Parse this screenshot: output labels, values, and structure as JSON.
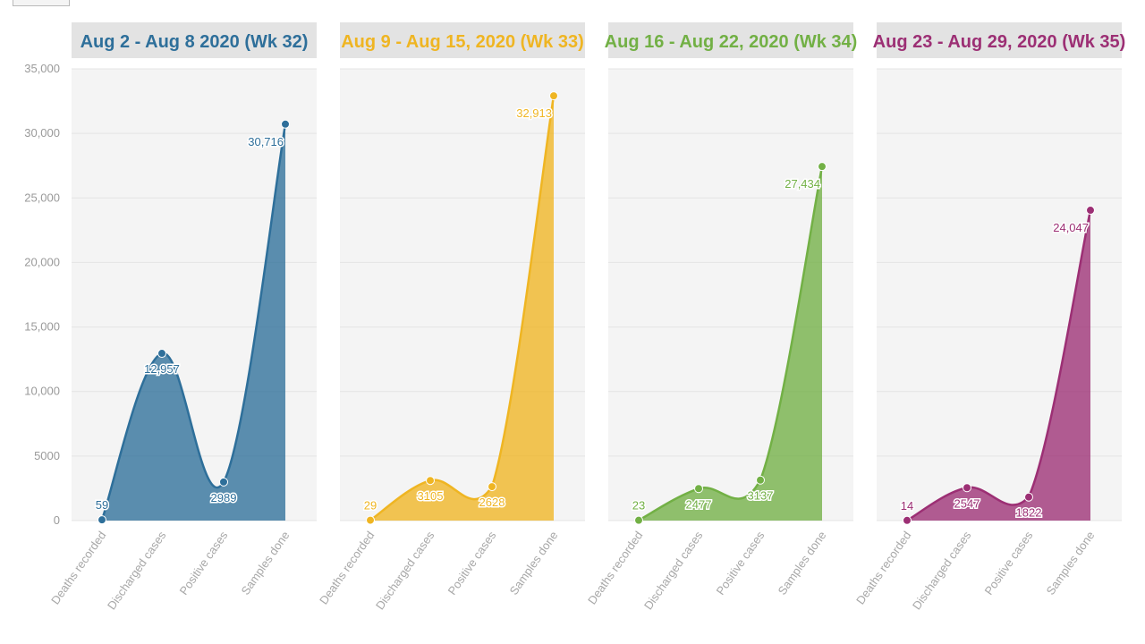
{
  "chart_data": {
    "type": "area",
    "ylim": [
      0,
      35000
    ],
    "y_ticks": [
      0,
      5000,
      10000,
      15000,
      20000,
      25000,
      30000,
      35000
    ],
    "y_tick_labels": [
      "0",
      "5000",
      "10,000",
      "15,000",
      "20,000",
      "25,000",
      "30,000",
      "35,000"
    ],
    "categories": [
      "Deaths recorded",
      "Discharged cases",
      "Positive cases",
      "Samples done"
    ],
    "grid": true,
    "panels": [
      {
        "title": "Aug 2 - Aug 8 2020 (Wk 32)",
        "color": "#2e6f9a",
        "values": [
          59,
          12957,
          2989,
          30716
        ],
        "value_labels": [
          "59",
          "12,957",
          "2989",
          "30,716"
        ]
      },
      {
        "title": "Aug 9 - Aug 15, 2020 (Wk 33)",
        "color": "#efb522",
        "values": [
          29,
          3105,
          2628,
          32913
        ],
        "value_labels": [
          "29",
          "3105",
          "2628",
          "32,913"
        ]
      },
      {
        "title": "Aug 16 - Aug 22, 2020 (Wk 34)",
        "color": "#72b045",
        "values": [
          23,
          2477,
          3137,
          27434
        ],
        "value_labels": [
          "23",
          "2477",
          "3137",
          "27,434"
        ]
      },
      {
        "title": "Aug 23 - Aug 29, 2020 (Wk 35)",
        "color": "#9c2f74",
        "values": [
          14,
          2547,
          1822,
          24047
        ],
        "value_labels": [
          "14",
          "2547",
          "1822",
          "24,047"
        ]
      }
    ]
  }
}
